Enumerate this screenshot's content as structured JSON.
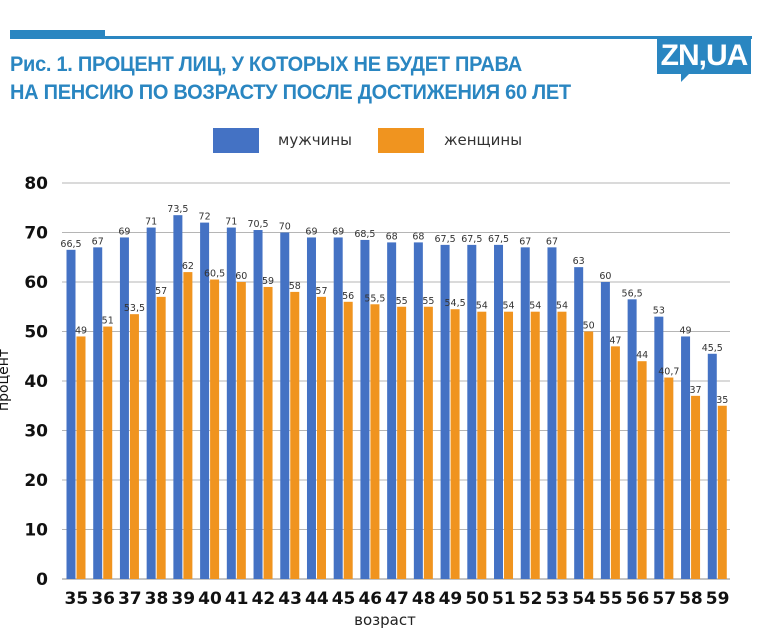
{
  "title_line1": "Рис. 1. ПРОЦЕНТ ЛИЦ, У КОТОРЫХ НЕ БУДЕТ ПРАВА",
  "title_line2": "НА ПЕНСИЮ ПО ВОЗРАСТУ ПОСЛЕ ДОСТИЖЕНИЯ 60 ЛЕТ",
  "logo": "ZN,UA",
  "colors": {
    "men": "#4472c4",
    "women": "#f0941f",
    "brand": "#2a86c1"
  },
  "chart_data": {
    "type": "bar",
    "title": "Рис. 1. ПРОЦЕНТ ЛИЦ, У КОТОРЫХ НЕ БУДЕТ ПРАВА НА ПЕНСИЮ ПО ВОЗРАСТУ ПОСЛЕ ДОСТИЖЕНИЯ 60 ЛЕТ",
    "xlabel": "возраст",
    "ylabel": "процент",
    "ylim": [
      0,
      80
    ],
    "yticks": [
      0,
      10,
      20,
      30,
      40,
      50,
      60,
      70,
      80
    ],
    "grid": true,
    "legend_position": "top-center",
    "categories": [
      "35",
      "36",
      "37",
      "38",
      "39",
      "40",
      "41",
      "42",
      "43",
      "44",
      "45",
      "46",
      "47",
      "48",
      "49",
      "50",
      "51",
      "52",
      "53",
      "54",
      "55",
      "56",
      "57",
      "58",
      "59"
    ],
    "series": [
      {
        "name": "мужчины",
        "values": [
          66.5,
          67,
          69,
          71,
          73.5,
          72,
          71,
          70.5,
          70,
          69,
          69,
          68.5,
          68,
          68,
          67.5,
          67.5,
          67.5,
          67,
          67,
          63,
          60,
          56.5,
          53,
          49,
          45.5
        ],
        "labels": [
          "66,5",
          "67",
          "69",
          "71",
          "73,5",
          "72",
          "71",
          "70,5",
          "70",
          "69",
          "69",
          "68,5",
          "68",
          "68",
          "67,5",
          "67,5",
          "67,5",
          "67",
          "67",
          "63",
          "60",
          "56,5",
          "53",
          "49",
          "45,5"
        ]
      },
      {
        "name": "женщины",
        "values": [
          49,
          51,
          53.5,
          57,
          62,
          60.5,
          60,
          59,
          58,
          57,
          56,
          55.5,
          55,
          55,
          54.5,
          54,
          54,
          54,
          54,
          50,
          47,
          44,
          40.7,
          37,
          35
        ],
        "labels": [
          "49",
          "51",
          "53,5",
          "57",
          "62",
          "60,5",
          "60",
          "59",
          "58",
          "57",
          "56",
          "55,5",
          "55",
          "55",
          "54,5",
          "54",
          "54",
          "54",
          "54",
          "50",
          "47",
          "44",
          "40,7",
          "37",
          "35"
        ]
      }
    ]
  }
}
